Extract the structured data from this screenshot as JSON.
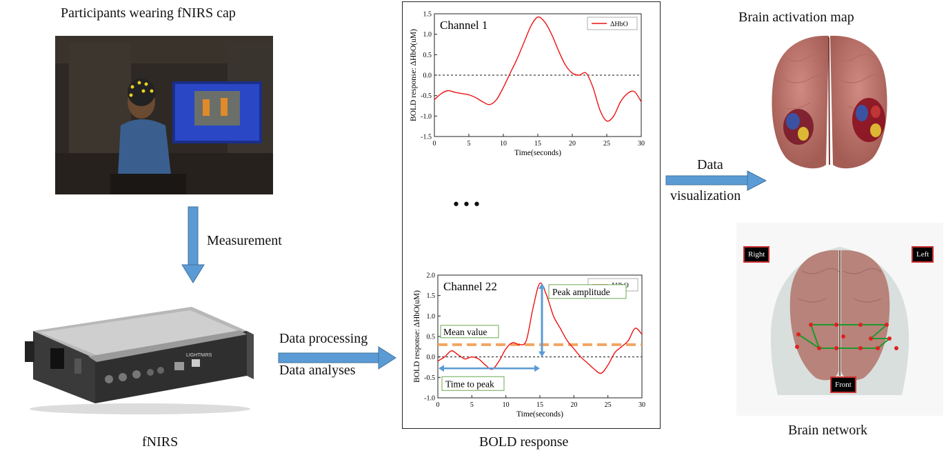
{
  "labels": {
    "participants": "Participants wearing fNIRS cap",
    "measurement": "Measurement",
    "fnirs": "fNIRS",
    "data_processing": "Data processing",
    "data_analyses": "Data analyses",
    "bold_response": "BOLD response",
    "data": "Data",
    "visualization": "visualization",
    "brain_activation_map": "Brain activation map",
    "brain_network": "Brain network",
    "ellipsis": "•••"
  },
  "device": {
    "brand": "LIGHTNIRS"
  },
  "network_tags": {
    "right": "Right",
    "left": "Left",
    "front": "Front"
  },
  "colors": {
    "arrow": "#5b9bd5",
    "signal": "#ee1111",
    "mean_line": "#f4a460",
    "annotation_border": "#6aa84f"
  },
  "chart_data": [
    {
      "type": "line",
      "title": "Channel 1",
      "xlabel": "Time(seconds)",
      "ylabel": "BOLD response: ΔHbO(uM)",
      "legend": "ΔHbO",
      "legend_position": "top-right",
      "xlim": [
        0,
        30
      ],
      "ylim": [
        -1.5,
        1.5
      ],
      "xticks": [
        "0",
        "5",
        "10",
        "15",
        "20",
        "25",
        "30"
      ],
      "yticks": [
        "1.5",
        "1.0",
        "0.5",
        "0.0",
        "-0.5",
        "-1.0",
        "-1.5"
      ],
      "x": [
        0,
        1,
        2,
        3,
        4,
        5,
        6,
        7,
        8,
        9,
        10,
        11,
        12,
        13,
        14,
        15,
        16,
        17,
        18,
        19,
        20,
        21,
        22,
        23,
        24,
        25,
        26,
        27,
        28,
        29,
        30
      ],
      "y": [
        -0.6,
        -0.45,
        -0.38,
        -0.42,
        -0.45,
        -0.48,
        -0.55,
        -0.65,
        -0.72,
        -0.6,
        -0.3,
        0.05,
        0.4,
        0.8,
        1.2,
        1.42,
        1.3,
        1.0,
        0.6,
        0.25,
        0.05,
        0.0,
        0.05,
        -0.3,
        -0.85,
        -1.12,
        -1.0,
        -0.65,
        -0.45,
        -0.4,
        -0.65
      ]
    },
    {
      "type": "line",
      "title": "Channel 22",
      "xlabel": "Time(seconds)",
      "ylabel": "BOLD response: ΔHbO(uM)",
      "legend": "ΔHbO",
      "legend_position": "top-right",
      "xlim": [
        0,
        30
      ],
      "ylim": [
        -1.0,
        2.0
      ],
      "xticks": [
        "0",
        "5",
        "10",
        "15",
        "20",
        "25",
        "30"
      ],
      "yticks": [
        "2.0",
        "1.5",
        "1.0",
        "0.5",
        "0.0",
        "-0.5",
        "-1.0"
      ],
      "x": [
        0,
        1,
        2,
        3,
        4,
        5,
        6,
        7,
        8,
        9,
        10,
        11,
        12,
        13,
        14,
        15,
        16,
        17,
        18,
        19,
        20,
        21,
        22,
        23,
        24,
        25,
        26,
        27,
        28,
        29,
        30
      ],
      "y": [
        -0.1,
        0.0,
        0.15,
        0.05,
        -0.05,
        0.0,
        -0.05,
        -0.2,
        -0.3,
        -0.1,
        0.2,
        0.35,
        0.3,
        0.4,
        1.2,
        1.8,
        1.5,
        1.0,
        0.7,
        0.4,
        0.2,
        0.0,
        -0.15,
        -0.3,
        -0.4,
        -0.2,
        0.1,
        0.25,
        0.4,
        0.7,
        0.55
      ],
      "mean_value": 0.3,
      "annotations": {
        "mean": "Mean value",
        "peak": "Peak amplitude",
        "time_to_peak": "Time to peak"
      }
    }
  ]
}
